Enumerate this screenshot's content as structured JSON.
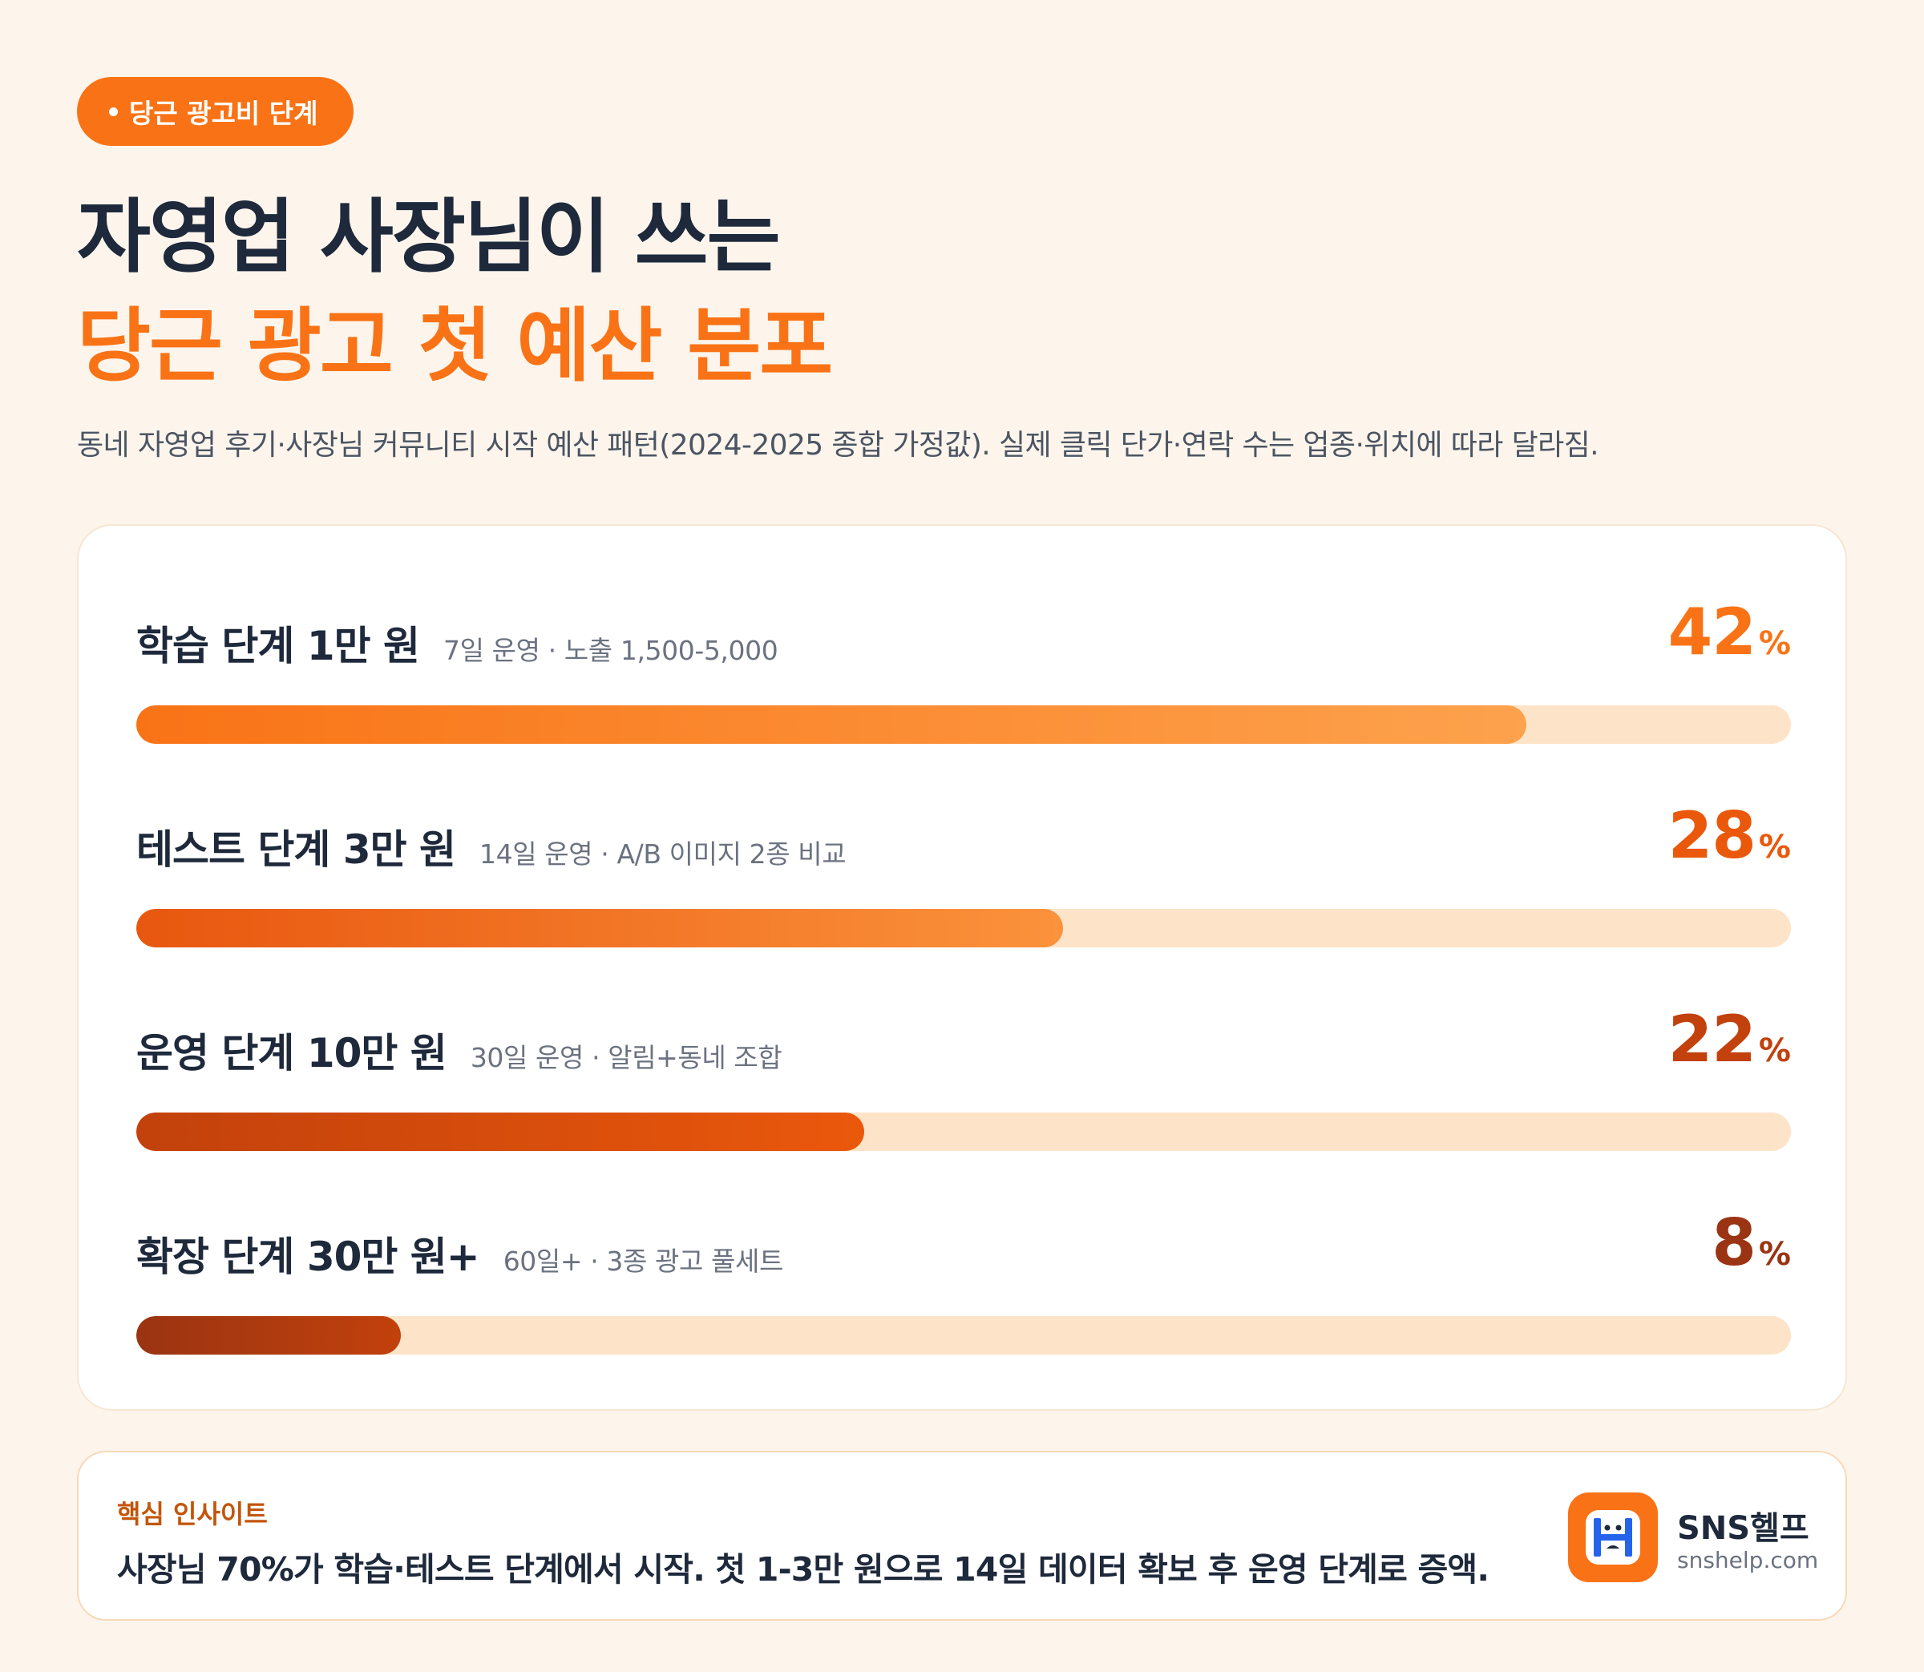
{
  "badge": {
    "label": "당근 광고비 단계"
  },
  "title": {
    "line1": "자영업 사장님이 쓰는",
    "line2": "당근 광고 첫 예산 분포"
  },
  "subtitle": "동네 자영업 후기·사장님 커뮤니티 시작 예산 패턴(2024-2025 종합 가정값). 실제 클릭 단가·연락 수는 업종·위치에 따라 달라짐.",
  "chart_data": {
    "type": "bar",
    "orientation": "horizontal",
    "categories": [
      "학습 단계 1만 원",
      "테스트 단계 3만 원",
      "운영 단계 10만 원",
      "확장 단계 30만 원+"
    ],
    "values": [
      42,
      28,
      22,
      8
    ],
    "unit": "%",
    "xlim": [
      0,
      50
    ]
  },
  "rows": [
    {
      "label": "학습 단계 1만 원",
      "sub": "7일 운영 · 노출 1,500-5,000",
      "value": "42",
      "unit": "%",
      "color": "#f97316",
      "grad_from": "#f97316",
      "grad_to": "#fda24d"
    },
    {
      "label": "테스트 단계 3만 원",
      "sub": "14일 운영 · A/B 이미지 2종 비교",
      "value": "28",
      "unit": "%",
      "color": "#ea580c",
      "grad_from": "#e8570f",
      "grad_to": "#fb923c"
    },
    {
      "label": "운영 단계 10만 원",
      "sub": "30일 운영 · 알림+동네 조합",
      "value": "22",
      "unit": "%",
      "color": "#c2410c",
      "grad_from": "#c2410c",
      "grad_to": "#ea580c"
    },
    {
      "label": "확장 단계 30만 원+",
      "sub": "60일+ · 3종 광고 풀세트",
      "value": "8",
      "unit": "%",
      "color": "#9a3412",
      "grad_from": "#9a3412",
      "grad_to": "#c2410c"
    }
  ],
  "insight": {
    "label": "핵심 인사이트",
    "text": "사장님 70%가 학습·테스트 단계에서 시작. 첫 1-3만 원으로 14일 데이터 확보 후 운영 단계로 증액."
  },
  "brand": {
    "name": "SNS헬프",
    "url": "snshelp.com",
    "logo_icon": "snshelp-logo-icon"
  }
}
